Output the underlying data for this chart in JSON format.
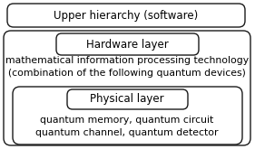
{
  "bg_color": "#ffffff",
  "box_edge_color": "#1a1a1a",
  "box_face_color": "#ffffff",
  "title_top": "Upper hierarchy (software)",
  "title_hw": "Hardware layer",
  "desc_hw": "mathematical information processing technology\n(combination of the following quantum devices)",
  "title_phy": "Physical layer",
  "desc_phy": "quantum memory, quantum circuit\nquantum channel, quantum detector",
  "title_fontsize": 8.5,
  "desc_fontsize": 7.8,
  "figsize": [
    2.81,
    1.65
  ],
  "dpi": 100,
  "lw": 1.0
}
